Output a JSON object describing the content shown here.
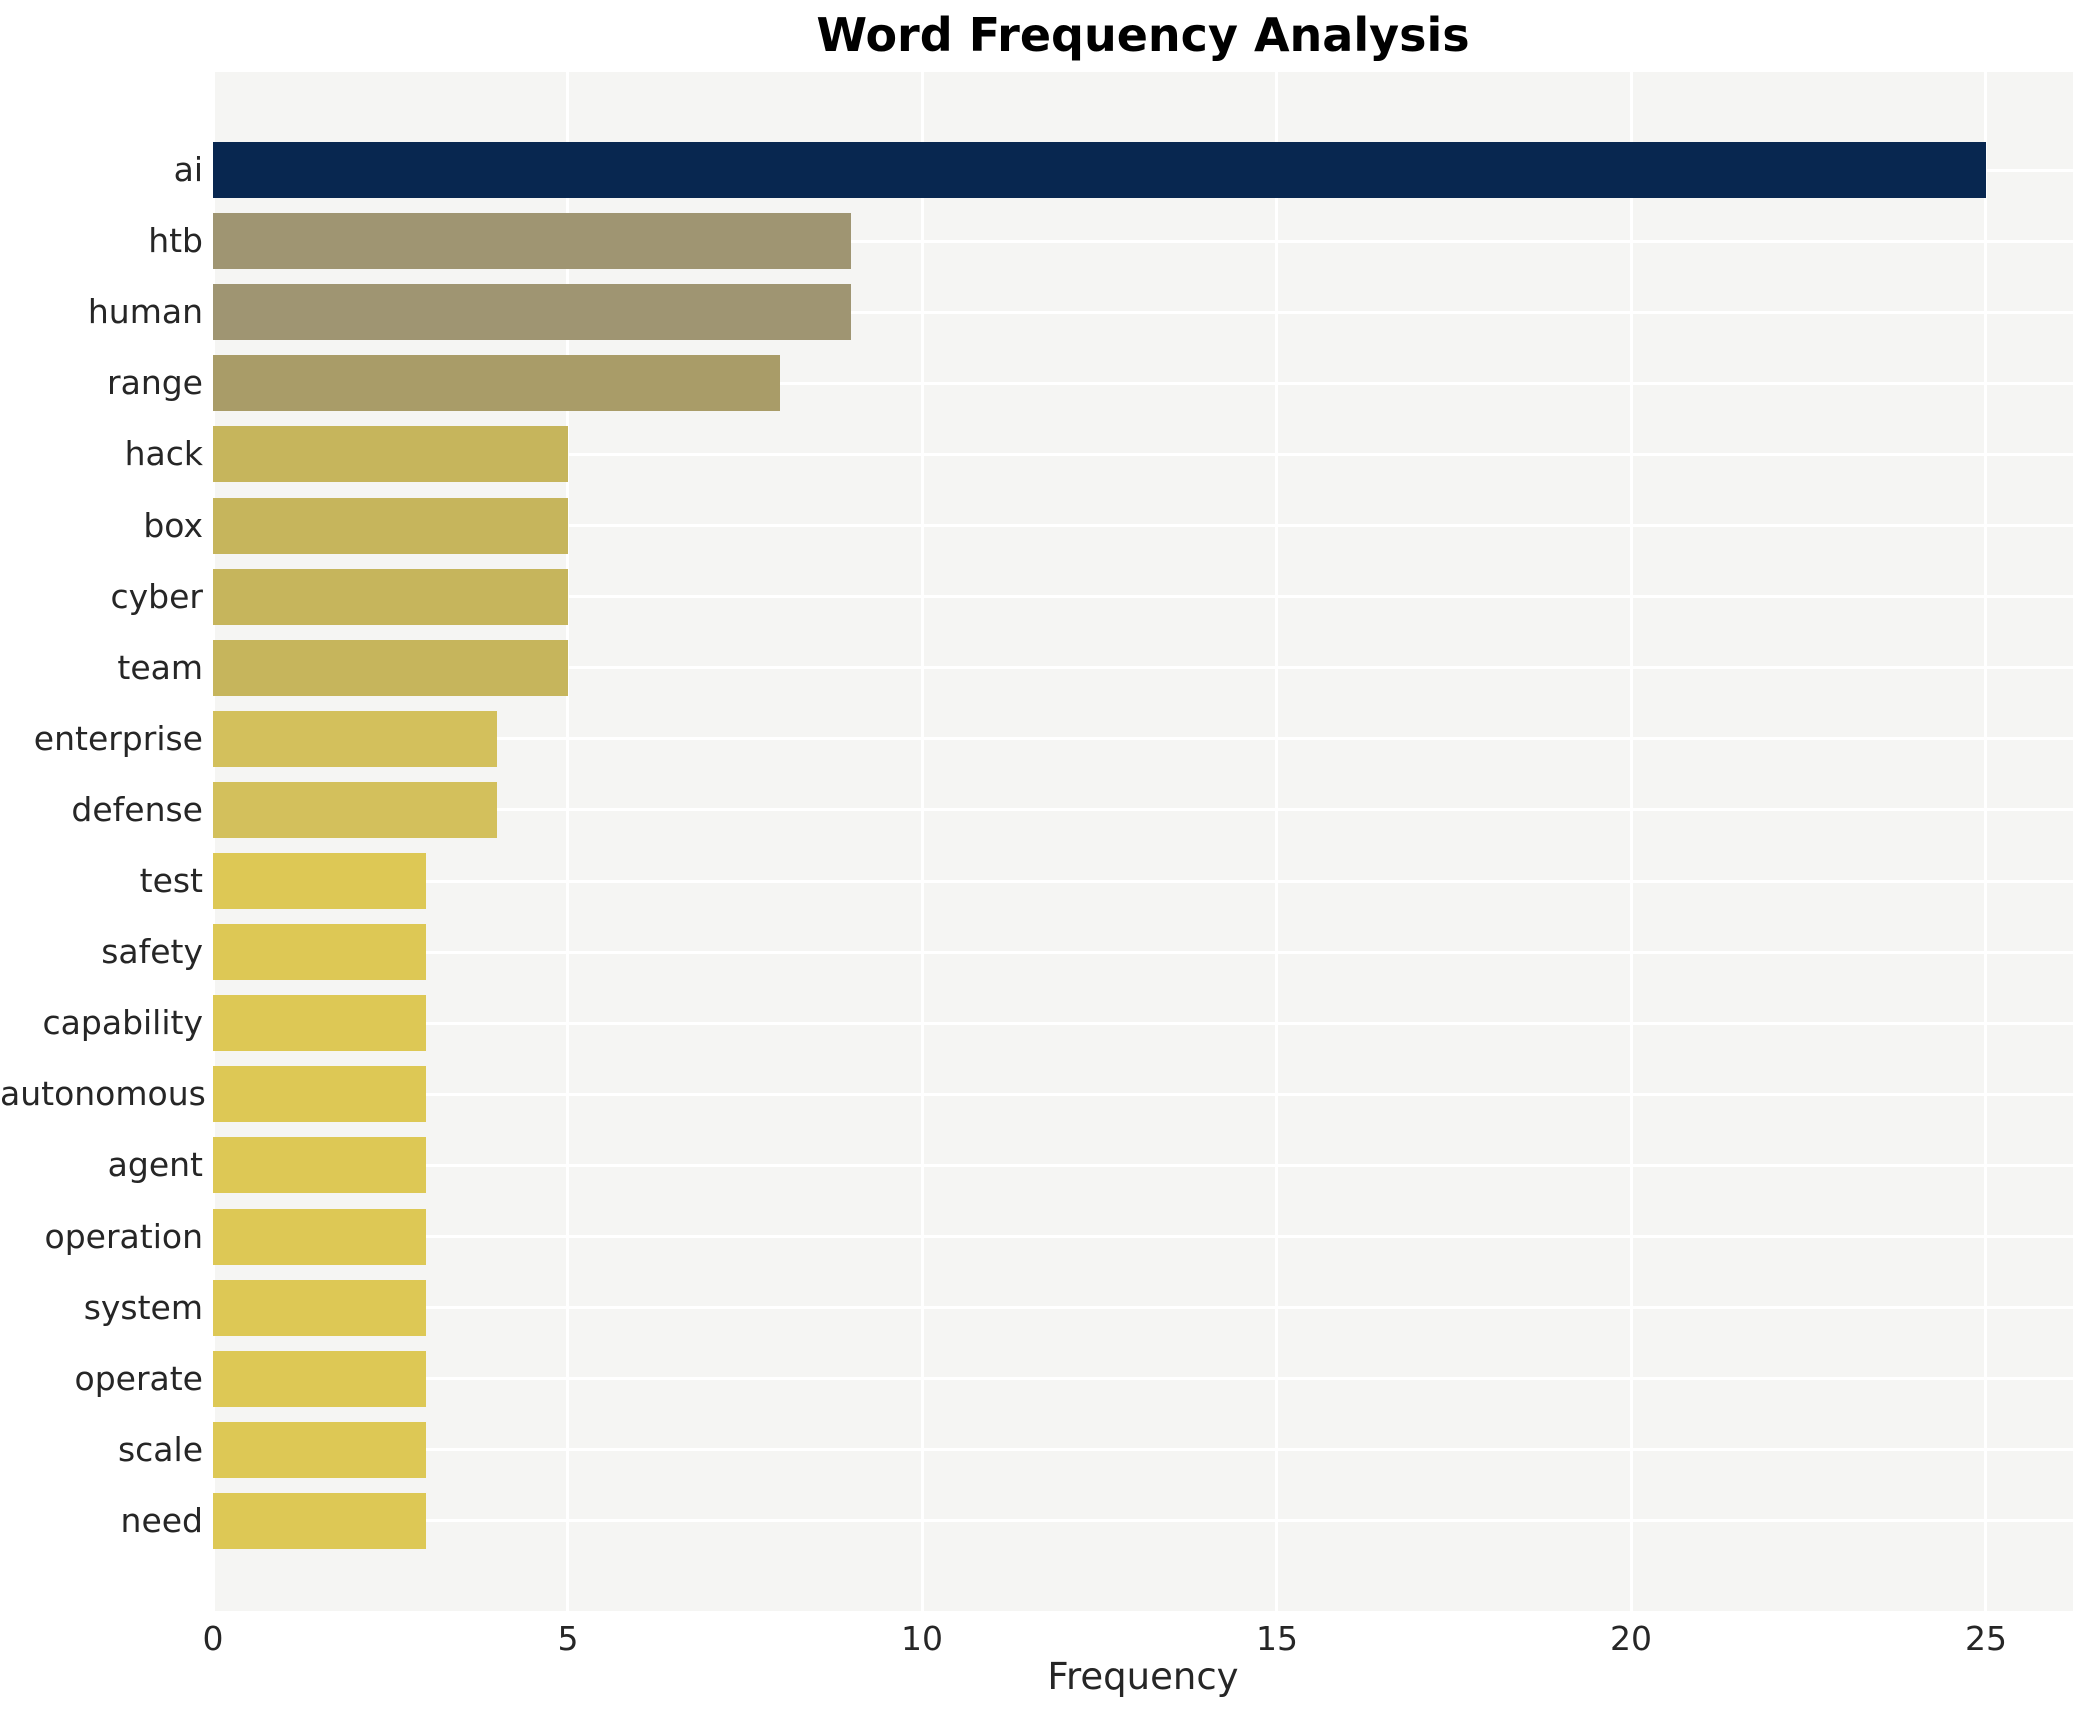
{
  "chart_data": {
    "type": "bar",
    "orientation": "horizontal",
    "title": "Word Frequency Analysis",
    "xlabel": "Frequency",
    "ylabel": "",
    "categories": [
      "ai",
      "htb",
      "human",
      "range",
      "hack",
      "box",
      "cyber",
      "team",
      "enterprise",
      "defense",
      "test",
      "safety",
      "capability",
      "autonomous",
      "agent",
      "operation",
      "system",
      "operate",
      "scale",
      "need"
    ],
    "values": [
      25,
      9,
      9,
      8,
      5,
      5,
      5,
      5,
      4,
      4,
      3,
      3,
      3,
      3,
      3,
      3,
      3,
      3,
      3,
      3
    ],
    "bar_colors": [
      "#082750",
      "#9f9572",
      "#9f9572",
      "#a99c68",
      "#c6b55c",
      "#c6b55c",
      "#c6b55c",
      "#c6b55c",
      "#d3c05c",
      "#d3c05c",
      "#ddc855",
      "#ddc855",
      "#ddc855",
      "#ddc855",
      "#ddc855",
      "#ddc855",
      "#ddc855",
      "#ddc855",
      "#ddc855",
      "#ddc855"
    ],
    "xticks": [
      0,
      5,
      10,
      15,
      20,
      25
    ],
    "xlim": [
      0,
      26.23
    ],
    "grid": true,
    "legend": null,
    "gridline_color": "#ffffff",
    "plot_background": "#f5f5f3",
    "figure_background": "#ffffff",
    "text_color": "#262626",
    "title_color": "#000000"
  }
}
